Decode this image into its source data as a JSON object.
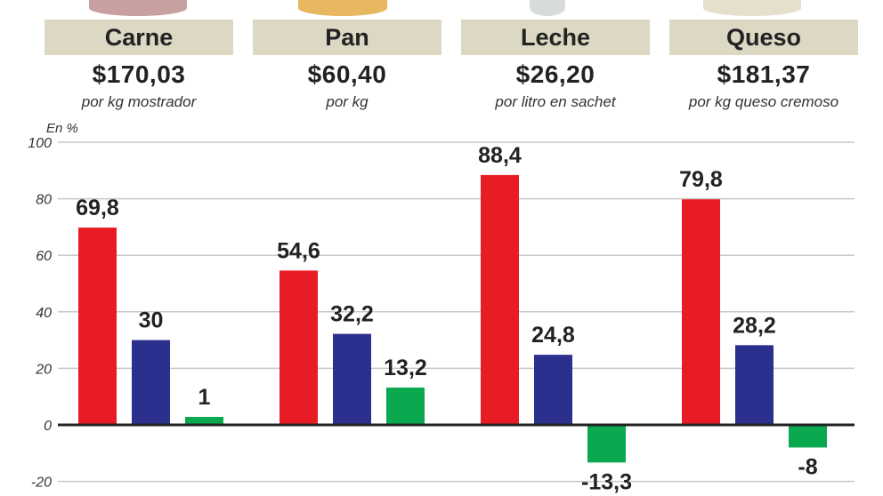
{
  "products": [
    {
      "name": "Carne",
      "price": "$170,03",
      "unit": "por kg mostrador"
    },
    {
      "name": "Pan",
      "price": "$60,40",
      "unit": "por kg"
    },
    {
      "name": "Leche",
      "price": "$26,20",
      "unit": "por litro en sachet"
    },
    {
      "name": "Queso",
      "price": "$181,37",
      "unit": "por kg queso cremoso"
    }
  ],
  "chart_data": {
    "type": "bar",
    "ylabel": "En %",
    "categories": [
      "Carne",
      "Pan",
      "Leche",
      "Queso"
    ],
    "series": [
      {
        "color": "#e81c24",
        "values": [
          69.8,
          54.6,
          88.4,
          79.8
        ],
        "labels": [
          "69,8",
          "54,6",
          "88,4",
          "79,8"
        ]
      },
      {
        "color": "#2b2f8e",
        "values": [
          30,
          32.2,
          24.8,
          28.2
        ],
        "labels": [
          "30",
          "32,2",
          "24,8",
          "28,2"
        ]
      },
      {
        "color": "#0aa84f",
        "values": [
          1,
          13.2,
          -13.3,
          -8
        ],
        "labels": [
          "1",
          "13,2",
          "-13,3",
          "-8"
        ]
      }
    ],
    "ylim": [
      -20,
      100
    ],
    "yticks": [
      100,
      80,
      60,
      40,
      20,
      0,
      -20
    ],
    "grid": true
  }
}
